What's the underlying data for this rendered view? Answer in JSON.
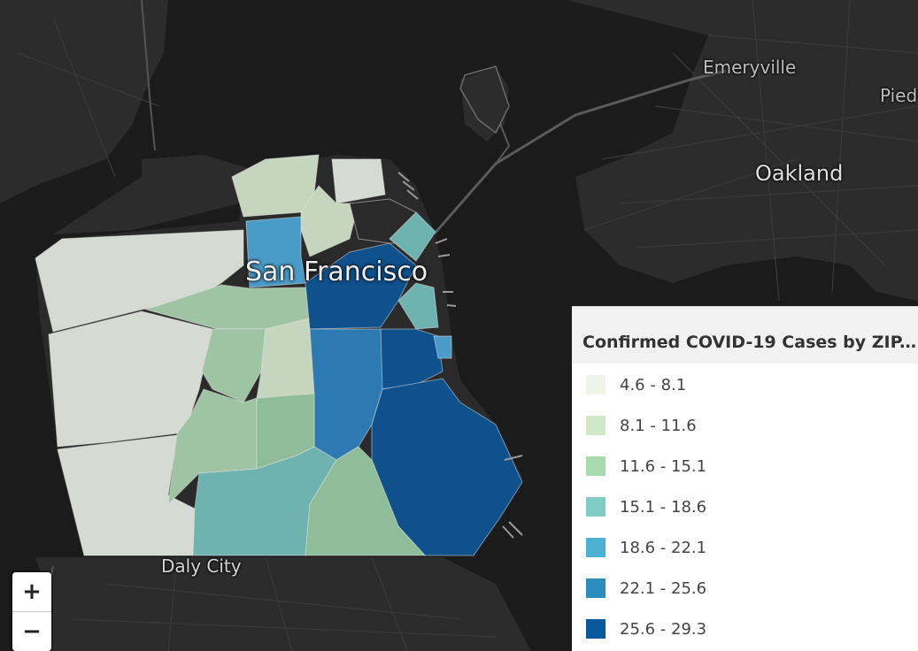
{
  "map": {
    "background_color": "#1b1b1b",
    "cities": {
      "emeryville": "Emeryville",
      "piedmont": "Pied",
      "oakland": "Oakland",
      "san_francisco": "San Francisco",
      "daly_city": "Daly City"
    }
  },
  "zoom": {
    "in_label": "+",
    "out_label": "−"
  },
  "legend": {
    "title": "Confirmed COVID-19 Cases by ZIP...",
    "items": [
      {
        "label": "4.6 - 8.1",
        "color": "#eef5e8"
      },
      {
        "label": "8.1 - 11.6",
        "color": "#cfe8c6"
      },
      {
        "label": "11.6 - 15.1",
        "color": "#a8dbb0"
      },
      {
        "label": "15.1 - 18.6",
        "color": "#7fcdc4"
      },
      {
        "label": "18.6 - 22.1",
        "color": "#4cb2d4"
      },
      {
        "label": "22.1 - 25.6",
        "color": "#2b8cbe"
      },
      {
        "label": "25.6 - 29.3",
        "color": "#08589e"
      }
    ]
  },
  "zip_fill_colors": {
    "light": "#d5dbd3",
    "light_green": "#c6d6be",
    "mid_green": "#9fc4a3",
    "green": "#8fbd9a",
    "teal": "#6fb3b0",
    "mid_blue": "#4a9cc8",
    "blue": "#2c7ab1",
    "dark_blue": "#0e518d"
  }
}
